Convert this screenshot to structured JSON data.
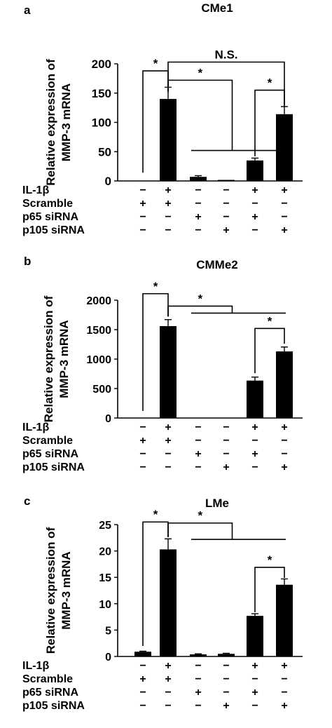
{
  "colors": {
    "bar": "#000000",
    "axis": "#000000",
    "background": "#ffffff"
  },
  "row_labels": [
    "IL-1β",
    "Scramble",
    "p65 siRNA",
    "p105 siRNA"
  ],
  "chart_data": [
    {
      "type": "bar",
      "panel": "a",
      "title": "CMe1",
      "ylabel_line1": "Relative expression of",
      "ylabel_line2": "MMP-3 mRNA",
      "ylim": [
        0,
        200
      ],
      "yticks": [
        0,
        50,
        100,
        150,
        200
      ],
      "grid": false,
      "values": [
        0,
        140,
        7,
        1,
        35,
        114
      ],
      "errors": [
        0,
        20,
        2,
        0,
        4,
        13
      ],
      "conditions": [
        [
          "−",
          "+",
          "−",
          "−",
          "+",
          "+"
        ],
        [
          "+",
          "+",
          "−",
          "−",
          "−",
          "−"
        ],
        [
          "−",
          "−",
          "+",
          "−",
          "+",
          "−"
        ],
        [
          "−",
          "−",
          "−",
          "+",
          "−",
          "+"
        ]
      ],
      "annotations": [
        {
          "type": "pair",
          "from": 0,
          "to": 1,
          "label": "*",
          "base": [
            14,
            152
          ],
          "top": 188
        },
        {
          "type": "group",
          "from": 1,
          "to_start": 2,
          "to_end": 5,
          "label": "*",
          "base": 152,
          "top": 172,
          "bottom": 52
        },
        {
          "type": "pair",
          "from": 4,
          "to": 5,
          "label": "*",
          "base": [
            42,
            127
          ],
          "top": 155
        },
        {
          "type": "span",
          "from": 1,
          "to": 5,
          "label": "N.S.",
          "base": [
            160,
            130
          ],
          "top": 203
        }
      ]
    },
    {
      "type": "bar",
      "panel": "b",
      "title": "CMMe2",
      "ylabel_line1": "Relative expression of",
      "ylabel_line2": "MMP-3 mRNA",
      "ylim": [
        0,
        2000
      ],
      "yticks": [
        0,
        500,
        1000,
        1500,
        2000
      ],
      "grid": false,
      "values": [
        0,
        1560,
        0,
        0,
        635,
        1130
      ],
      "errors": [
        0,
        110,
        0,
        0,
        60,
        75
      ],
      "conditions": [
        [
          "−",
          "+",
          "−",
          "−",
          "+",
          "+"
        ],
        [
          "+",
          "+",
          "−",
          "−",
          "−",
          "−"
        ],
        [
          "−",
          "−",
          "+",
          "−",
          "+",
          "−"
        ],
        [
          "−",
          "−",
          "−",
          "+",
          "−",
          "+"
        ]
      ],
      "annotations": [
        {
          "type": "pair",
          "from": 0,
          "to": 1,
          "label": "*",
          "base": [
            120,
            1720
          ],
          "top": 2110
        },
        {
          "type": "group",
          "from": 1,
          "to_start": 2,
          "to_end": 5,
          "label": "*",
          "base": 1720,
          "top": 1900,
          "bottom": 1780
        },
        {
          "type": "pair",
          "from": 4,
          "to": 5,
          "label": "*",
          "base": [
            760,
            1260
          ],
          "top": 1520
        }
      ]
    },
    {
      "type": "bar",
      "panel": "c",
      "title": "LMe",
      "ylabel_line1": "Relative expression of",
      "ylabel_line2": "MMP-3 mRNA",
      "ylim": [
        0,
        25
      ],
      "yticks": [
        0,
        5,
        10,
        15,
        20,
        25
      ],
      "grid": false,
      "values": [
        0.9,
        20.3,
        0.4,
        0.5,
        7.7,
        13.6
      ],
      "errors": [
        0.1,
        2.0,
        0.1,
        0.1,
        0.4,
        1.1
      ],
      "conditions": [
        [
          "−",
          "+",
          "−",
          "−",
          "+",
          "+"
        ],
        [
          "+",
          "+",
          "−",
          "−",
          "−",
          "−"
        ],
        [
          "−",
          "−",
          "+",
          "−",
          "+",
          "−"
        ],
        [
          "−",
          "−",
          "−",
          "+",
          "−",
          "+"
        ]
      ],
      "annotations": [
        {
          "type": "pair",
          "from": 0,
          "to": 1,
          "label": "*",
          "base": [
            2.0,
            22.6
          ],
          "top": 25.5
        },
        {
          "type": "group",
          "from": 1,
          "to_start": 2,
          "to_end": 5,
          "label": "*",
          "base": 22.6,
          "top": 25.3,
          "bottom": 22.2
        },
        {
          "type": "pair",
          "from": 4,
          "to": 5,
          "label": "*",
          "base": [
            8.4,
            14.9
          ],
          "top": 16.9
        }
      ]
    }
  ]
}
